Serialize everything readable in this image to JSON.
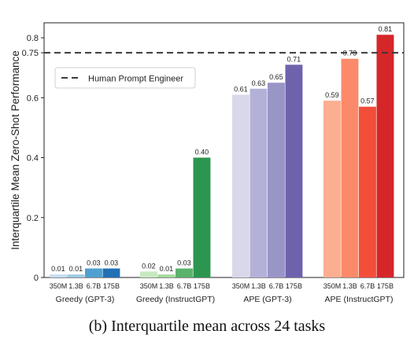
{
  "chart_data": {
    "type": "bar",
    "ylabel": "Interquartile Mean Zero-Shot Performance",
    "ylim": [
      0,
      0.85
    ],
    "yticks": [
      "0",
      "0.2",
      "0.4",
      "0.6",
      "0.75",
      "0.8"
    ],
    "reference_line": {
      "value": 0.75,
      "label": "Human Prompt Engineer",
      "style": "dashed",
      "color": "#3a3a3a"
    },
    "legend_position": "upper-left",
    "groups": [
      {
        "name": "Greedy (GPT-3)",
        "bars": [
          {
            "size": "350M",
            "value": 0.01,
            "label": "0.01",
            "color": "#c6dbef"
          },
          {
            "size": "1.3B",
            "value": 0.01,
            "label": "0.01",
            "color": "#9ecae1"
          },
          {
            "size": "6.7B",
            "value": 0.03,
            "label": "0.03",
            "color": "#4f9fd0"
          },
          {
            "size": "175B",
            "value": 0.03,
            "label": "0.03",
            "color": "#2171b5"
          }
        ]
      },
      {
        "name": "Greedy (InstructGPT)",
        "bars": [
          {
            "size": "350M",
            "value": 0.02,
            "label": "0.02",
            "color": "#c7e9c0"
          },
          {
            "size": "1.3B",
            "value": 0.01,
            "label": "0.01",
            "color": "#a1d99b"
          },
          {
            "size": "6.7B",
            "value": 0.03,
            "label": "0.03",
            "color": "#5bb36b"
          },
          {
            "size": "175B",
            "value": 0.4,
            "label": "0.40",
            "color": "#2c9650"
          }
        ]
      },
      {
        "name": "APE (GPT-3)",
        "bars": [
          {
            "size": "350M",
            "value": 0.61,
            "label": "0.61",
            "color": "#d9d8ea"
          },
          {
            "size": "1.3B",
            "value": 0.63,
            "label": "0.63",
            "color": "#b4b1d8"
          },
          {
            "size": "6.7B",
            "value": 0.65,
            "label": "0.65",
            "color": "#9a95c7"
          },
          {
            "size": "175B",
            "value": 0.71,
            "label": "0.71",
            "color": "#6f62ad"
          }
        ]
      },
      {
        "name": "APE (InstructGPT)",
        "bars": [
          {
            "size": "350M",
            "value": 0.59,
            "label": "0.59",
            "color": "#fcae91"
          },
          {
            "size": "1.3B",
            "value": 0.73,
            "label": "0.73",
            "color": "#fb8a6a"
          },
          {
            "size": "6.7B",
            "value": 0.57,
            "label": "0.57",
            "color": "#f24e3a"
          },
          {
            "size": "175B",
            "value": 0.81,
            "label": "0.81",
            "color": "#d5262a"
          }
        ]
      }
    ]
  },
  "caption": "(b) Interquartile mean across 24 tasks"
}
